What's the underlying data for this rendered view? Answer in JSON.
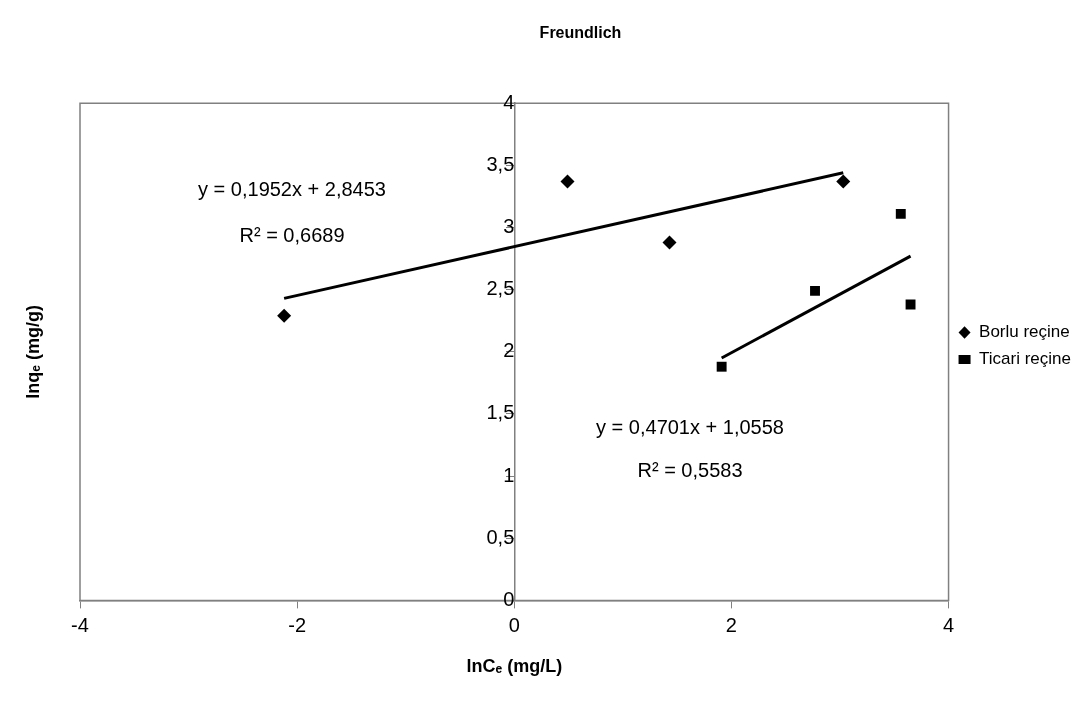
{
  "chart_data": {
    "type": "scatter",
    "title": "Freundlich",
    "xlabel": "lnCₑ (mg/L)",
    "ylabel": "lnqₑ (mg/g)",
    "series": [
      {
        "name": "Borlu reçine",
        "color": "#000000",
        "marker": "diamond",
        "x": [
          -2.12,
          0.49,
          1.43,
          3.03
        ],
        "values": [
          2.29,
          3.37,
          2.88,
          3.37
        ]
      },
      {
        "name": "Ticari reçine",
        "color": "#000000",
        "marker": "square",
        "x": [
          1.91,
          2.77,
          3.56,
          3.65
        ],
        "values": [
          1.88,
          2.49,
          3.11,
          2.38
        ]
      },
      {
        "type": "line",
        "color": "#000000",
        "x": [
          -2.12,
          3.03
        ],
        "values": [
          2.43,
          3.44
        ]
      },
      {
        "type": "line",
        "color": "#000000",
        "x": [
          1.91,
          3.65
        ],
        "values": [
          1.95,
          2.77
        ]
      }
    ],
    "xlim": [
      -4,
      4
    ],
    "xticks": [
      -4,
      -2,
      0,
      2,
      4
    ],
    "ylim": [
      0,
      4
    ],
    "yticks": [
      0,
      {
        "value": 0.5,
        "label": "0,5"
      },
      1,
      {
        "value": 1.5,
        "label": "1,5"
      },
      2,
      {
        "value": 2.5,
        "label": "2,5"
      },
      3,
      {
        "value": 3.5,
        "label": "3,5"
      },
      4
    ],
    "annotations": [
      "y = 0,1952x + 2,8453",
      "R² = 0,6689",
      "y = 0,4701x + 1,0558",
      "R² = 0,5583"
    ],
    "grid": false,
    "legend": "right"
  }
}
